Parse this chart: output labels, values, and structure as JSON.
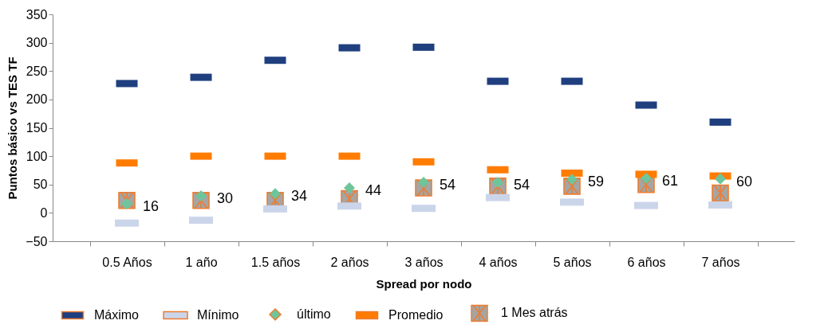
{
  "chart_data": {
    "type": "scatter",
    "xlabel": "Spread por nodo",
    "ylabel": "Puntos básico vs TES TF",
    "categories": [
      "0.5 Años",
      "1 año",
      "1.5 años",
      "2 años",
      "3 años",
      "4 años",
      "5 años",
      "6 años",
      "7 años"
    ],
    "ylim": [
      -50,
      350
    ],
    "yticks": [
      -50,
      0,
      50,
      100,
      150,
      200,
      250,
      300,
      350
    ],
    "grid": false,
    "legend": "bottom",
    "series": [
      {
        "name": "Máximo",
        "color": "#1f3f7f",
        "values": [
          228,
          239,
          269,
          291,
          292,
          232,
          232,
          190,
          160
        ]
      },
      {
        "name": "Mínimo",
        "color": "#cbd5ea",
        "values": [
          -18,
          -13,
          7,
          12,
          8,
          27,
          19,
          13,
          14
        ]
      },
      {
        "name": "último",
        "color": "#6fc59b",
        "marker": "diamond",
        "values": [
          16,
          30,
          34,
          44,
          54,
          54,
          59,
          61,
          60
        ],
        "value_labels": [
          "16",
          "30",
          "34",
          "44",
          "54",
          "54",
          "59",
          "61",
          "60"
        ]
      },
      {
        "name": "Promedio",
        "color": "#ff7c00",
        "values": [
          88,
          100,
          100,
          100,
          90,
          76,
          70,
          68,
          65
        ]
      },
      {
        "name": "1 Mes atrás",
        "color": "#a5a5a5",
        "marker": "cross",
        "values": [
          22,
          22,
          22,
          25,
          44,
          47,
          47,
          50,
          35
        ]
      }
    ]
  }
}
